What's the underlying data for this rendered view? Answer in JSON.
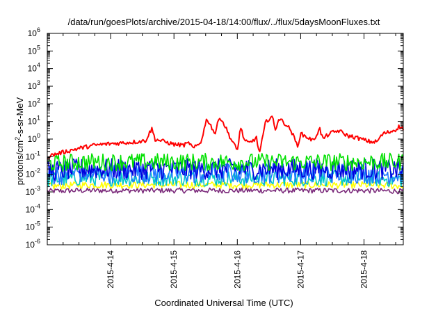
{
  "chart_data": {
    "type": "line",
    "title": "/data/run/goesPlots/archive/2015-04-18/14:00/flux/../flux/5daysMoonFluxes.txt",
    "xlabel": "Coordinated Universal Time (UTC)",
    "ylabel": {
      "pre": "protons/cm",
      "sup": "2",
      "post": "-s-sr-MeV"
    },
    "x_range_days": [
      13.0,
      18.62
    ],
    "y_range": [
      1e-06,
      1000000.0
    ],
    "y_scale": "log",
    "y_ticks": [
      {
        "exp": -6,
        "label": "10",
        "sup": "-6"
      },
      {
        "exp": -5,
        "label": "10",
        "sup": "-5"
      },
      {
        "exp": -4,
        "label": "10",
        "sup": "-4"
      },
      {
        "exp": -3,
        "label": "10",
        "sup": "-3"
      },
      {
        "exp": -2,
        "label": "10",
        "sup": "-2"
      },
      {
        "exp": -1,
        "label": "10",
        "sup": "-1"
      },
      {
        "exp": 0,
        "label": "10",
        "sup": "0"
      },
      {
        "exp": 1,
        "label": "10",
        "sup": "1"
      },
      {
        "exp": 2,
        "label": "10",
        "sup": "2"
      },
      {
        "exp": 3,
        "label": "10",
        "sup": "3"
      },
      {
        "exp": 4,
        "label": "10",
        "sup": "4"
      },
      {
        "exp": 5,
        "label": "10",
        "sup": "5"
      },
      {
        "exp": 6,
        "label": "10",
        "sup": "6"
      }
    ],
    "x_ticks": [
      {
        "day": 14,
        "label": "2015-4-14"
      },
      {
        "day": 15,
        "label": "2015-4-15"
      },
      {
        "day": 16,
        "label": "2015-4-16"
      },
      {
        "day": 17,
        "label": "2015-4-17"
      },
      {
        "day": 18,
        "label": "2015-4-18"
      }
    ],
    "series": [
      {
        "color": "#7b2a7b",
        "noise": 0.15,
        "points": [
          [
            13.0,
            0.0011
          ],
          [
            13.5,
            0.0012
          ],
          [
            14.0,
            0.0012
          ],
          [
            14.5,
            0.0012
          ],
          [
            15.0,
            0.0012
          ],
          [
            15.5,
            0.0012
          ],
          [
            16.0,
            0.0012
          ],
          [
            16.5,
            0.0012
          ],
          [
            17.0,
            0.0012
          ],
          [
            17.5,
            0.0012
          ],
          [
            18.0,
            0.0012
          ],
          [
            18.62,
            0.0011
          ]
        ]
      },
      {
        "color": "#ffff00",
        "noise": 0.2,
        "points": [
          [
            13.0,
            0.002
          ],
          [
            13.5,
            0.0025
          ],
          [
            14.0,
            0.0025
          ],
          [
            14.5,
            0.0025
          ],
          [
            15.0,
            0.0025
          ],
          [
            15.5,
            0.0025
          ],
          [
            16.0,
            0.0025
          ],
          [
            16.5,
            0.0025
          ],
          [
            17.0,
            0.0025
          ],
          [
            17.5,
            0.0025
          ],
          [
            18.0,
            0.0025
          ],
          [
            18.62,
            0.0022
          ]
        ]
      },
      {
        "color": "#00c8c8",
        "noise": 0.45,
        "points": [
          [
            13.0,
            0.005
          ],
          [
            13.5,
            0.006
          ],
          [
            14.0,
            0.006
          ],
          [
            14.5,
            0.006
          ],
          [
            15.0,
            0.006
          ],
          [
            15.5,
            0.006
          ],
          [
            16.0,
            0.006
          ],
          [
            16.5,
            0.006
          ],
          [
            17.0,
            0.006
          ],
          [
            17.5,
            0.006
          ],
          [
            18.0,
            0.006
          ],
          [
            18.62,
            0.005
          ]
        ]
      },
      {
        "color": "#1e78ff",
        "noise": 0.6,
        "points": [
          [
            13.0,
            0.009
          ],
          [
            13.5,
            0.012
          ],
          [
            14.0,
            0.012
          ],
          [
            14.5,
            0.012
          ],
          [
            15.0,
            0.012
          ],
          [
            15.5,
            0.012
          ],
          [
            16.0,
            0.012
          ],
          [
            16.5,
            0.012
          ],
          [
            17.0,
            0.012
          ],
          [
            17.5,
            0.012
          ],
          [
            18.0,
            0.012
          ],
          [
            18.62,
            0.01
          ]
        ]
      },
      {
        "color": "#0000dd",
        "noise": 0.6,
        "points": [
          [
            13.0,
            0.015
          ],
          [
            13.5,
            0.02
          ],
          [
            14.0,
            0.02
          ],
          [
            14.5,
            0.02
          ],
          [
            15.0,
            0.02
          ],
          [
            15.5,
            0.02
          ],
          [
            16.0,
            0.02
          ],
          [
            16.5,
            0.02
          ],
          [
            17.0,
            0.02
          ],
          [
            17.5,
            0.02
          ],
          [
            18.0,
            0.02
          ],
          [
            18.62,
            0.018
          ]
        ]
      },
      {
        "color": "#00e000",
        "noise": 0.5,
        "points": [
          [
            13.0,
            0.04
          ],
          [
            13.5,
            0.05
          ],
          [
            14.0,
            0.05
          ],
          [
            14.5,
            0.05
          ],
          [
            15.0,
            0.05
          ],
          [
            15.5,
            0.05
          ],
          [
            16.0,
            0.05
          ],
          [
            16.5,
            0.05
          ],
          [
            17.0,
            0.05
          ],
          [
            17.5,
            0.05
          ],
          [
            18.0,
            0.05
          ],
          [
            18.62,
            0.05
          ]
        ]
      },
      {
        "color": "#ff0000",
        "noise": 0.12,
        "points": [
          [
            13.0,
            0.1
          ],
          [
            13.1,
            0.13
          ],
          [
            13.25,
            0.18
          ],
          [
            13.5,
            0.3
          ],
          [
            13.75,
            0.45
          ],
          [
            14.0,
            0.55
          ],
          [
            14.3,
            0.65
          ],
          [
            14.55,
            0.8
          ],
          [
            14.65,
            4.0
          ],
          [
            14.7,
            1.0
          ],
          [
            15.0,
            0.5
          ],
          [
            15.15,
            0.45
          ],
          [
            15.25,
            0.6
          ],
          [
            15.3,
            0.28
          ],
          [
            15.42,
            0.6
          ],
          [
            15.52,
            15.0
          ],
          [
            15.65,
            2.0
          ],
          [
            15.72,
            20.0
          ],
          [
            15.8,
            6.0
          ],
          [
            15.9,
            1.0
          ],
          [
            15.95,
            0.5
          ],
          [
            16.0,
            0.2
          ],
          [
            16.05,
            5.0
          ],
          [
            16.12,
            0.7
          ],
          [
            16.2,
            0.6
          ],
          [
            16.3,
            1.2
          ],
          [
            16.35,
            0.15
          ],
          [
            16.45,
            10.0
          ],
          [
            16.55,
            20.0
          ],
          [
            16.6,
            3.0
          ],
          [
            16.65,
            15.0
          ],
          [
            16.75,
            8.0
          ],
          [
            16.85,
            3.0
          ],
          [
            16.95,
            0.4
          ],
          [
            17.0,
            2.0
          ],
          [
            17.1,
            1.3
          ],
          [
            17.2,
            0.8
          ],
          [
            17.3,
            4.0
          ],
          [
            17.35,
            1.0
          ],
          [
            17.45,
            2.0
          ],
          [
            17.6,
            3.0
          ],
          [
            17.75,
            1.5
          ],
          [
            17.85,
            1.3
          ],
          [
            17.95,
            1.0
          ],
          [
            18.1,
            0.7
          ],
          [
            18.2,
            0.7
          ],
          [
            18.3,
            2.0
          ],
          [
            18.4,
            2.5
          ],
          [
            18.5,
            3.5
          ],
          [
            18.55,
            5.0
          ],
          [
            18.62,
            4.0
          ]
        ]
      }
    ]
  }
}
